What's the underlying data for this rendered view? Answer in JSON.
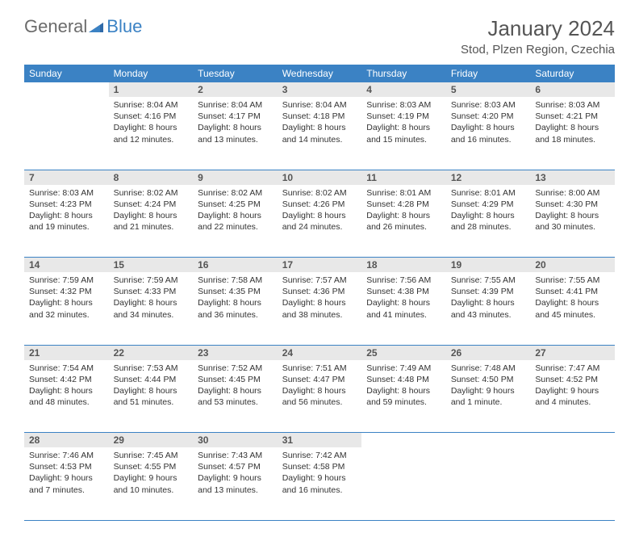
{
  "logo": {
    "text1": "General",
    "text2": "Blue"
  },
  "title": "January 2024",
  "location": "Stod, Plzen Region, Czechia",
  "colors": {
    "header_bg": "#3b82c4",
    "header_text": "#ffffff",
    "daynum_bg": "#e8e8e8",
    "daynum_text": "#555555",
    "body_text": "#333333",
    "rule": "#3b82c4",
    "logo_gray": "#6b6b6b",
    "logo_blue": "#3b82c4"
  },
  "weekdays": [
    "Sunday",
    "Monday",
    "Tuesday",
    "Wednesday",
    "Thursday",
    "Friday",
    "Saturday"
  ],
  "weeks": [
    [
      null,
      {
        "day": "1",
        "sunrise": "Sunrise: 8:04 AM",
        "sunset": "Sunset: 4:16 PM",
        "dl1": "Daylight: 8 hours",
        "dl2": "and 12 minutes."
      },
      {
        "day": "2",
        "sunrise": "Sunrise: 8:04 AM",
        "sunset": "Sunset: 4:17 PM",
        "dl1": "Daylight: 8 hours",
        "dl2": "and 13 minutes."
      },
      {
        "day": "3",
        "sunrise": "Sunrise: 8:04 AM",
        "sunset": "Sunset: 4:18 PM",
        "dl1": "Daylight: 8 hours",
        "dl2": "and 14 minutes."
      },
      {
        "day": "4",
        "sunrise": "Sunrise: 8:03 AM",
        "sunset": "Sunset: 4:19 PM",
        "dl1": "Daylight: 8 hours",
        "dl2": "and 15 minutes."
      },
      {
        "day": "5",
        "sunrise": "Sunrise: 8:03 AM",
        "sunset": "Sunset: 4:20 PM",
        "dl1": "Daylight: 8 hours",
        "dl2": "and 16 minutes."
      },
      {
        "day": "6",
        "sunrise": "Sunrise: 8:03 AM",
        "sunset": "Sunset: 4:21 PM",
        "dl1": "Daylight: 8 hours",
        "dl2": "and 18 minutes."
      }
    ],
    [
      {
        "day": "7",
        "sunrise": "Sunrise: 8:03 AM",
        "sunset": "Sunset: 4:23 PM",
        "dl1": "Daylight: 8 hours",
        "dl2": "and 19 minutes."
      },
      {
        "day": "8",
        "sunrise": "Sunrise: 8:02 AM",
        "sunset": "Sunset: 4:24 PM",
        "dl1": "Daylight: 8 hours",
        "dl2": "and 21 minutes."
      },
      {
        "day": "9",
        "sunrise": "Sunrise: 8:02 AM",
        "sunset": "Sunset: 4:25 PM",
        "dl1": "Daylight: 8 hours",
        "dl2": "and 22 minutes."
      },
      {
        "day": "10",
        "sunrise": "Sunrise: 8:02 AM",
        "sunset": "Sunset: 4:26 PM",
        "dl1": "Daylight: 8 hours",
        "dl2": "and 24 minutes."
      },
      {
        "day": "11",
        "sunrise": "Sunrise: 8:01 AM",
        "sunset": "Sunset: 4:28 PM",
        "dl1": "Daylight: 8 hours",
        "dl2": "and 26 minutes."
      },
      {
        "day": "12",
        "sunrise": "Sunrise: 8:01 AM",
        "sunset": "Sunset: 4:29 PM",
        "dl1": "Daylight: 8 hours",
        "dl2": "and 28 minutes."
      },
      {
        "day": "13",
        "sunrise": "Sunrise: 8:00 AM",
        "sunset": "Sunset: 4:30 PM",
        "dl1": "Daylight: 8 hours",
        "dl2": "and 30 minutes."
      }
    ],
    [
      {
        "day": "14",
        "sunrise": "Sunrise: 7:59 AM",
        "sunset": "Sunset: 4:32 PM",
        "dl1": "Daylight: 8 hours",
        "dl2": "and 32 minutes."
      },
      {
        "day": "15",
        "sunrise": "Sunrise: 7:59 AM",
        "sunset": "Sunset: 4:33 PM",
        "dl1": "Daylight: 8 hours",
        "dl2": "and 34 minutes."
      },
      {
        "day": "16",
        "sunrise": "Sunrise: 7:58 AM",
        "sunset": "Sunset: 4:35 PM",
        "dl1": "Daylight: 8 hours",
        "dl2": "and 36 minutes."
      },
      {
        "day": "17",
        "sunrise": "Sunrise: 7:57 AM",
        "sunset": "Sunset: 4:36 PM",
        "dl1": "Daylight: 8 hours",
        "dl2": "and 38 minutes."
      },
      {
        "day": "18",
        "sunrise": "Sunrise: 7:56 AM",
        "sunset": "Sunset: 4:38 PM",
        "dl1": "Daylight: 8 hours",
        "dl2": "and 41 minutes."
      },
      {
        "day": "19",
        "sunrise": "Sunrise: 7:55 AM",
        "sunset": "Sunset: 4:39 PM",
        "dl1": "Daylight: 8 hours",
        "dl2": "and 43 minutes."
      },
      {
        "day": "20",
        "sunrise": "Sunrise: 7:55 AM",
        "sunset": "Sunset: 4:41 PM",
        "dl1": "Daylight: 8 hours",
        "dl2": "and 45 minutes."
      }
    ],
    [
      {
        "day": "21",
        "sunrise": "Sunrise: 7:54 AM",
        "sunset": "Sunset: 4:42 PM",
        "dl1": "Daylight: 8 hours",
        "dl2": "and 48 minutes."
      },
      {
        "day": "22",
        "sunrise": "Sunrise: 7:53 AM",
        "sunset": "Sunset: 4:44 PM",
        "dl1": "Daylight: 8 hours",
        "dl2": "and 51 minutes."
      },
      {
        "day": "23",
        "sunrise": "Sunrise: 7:52 AM",
        "sunset": "Sunset: 4:45 PM",
        "dl1": "Daylight: 8 hours",
        "dl2": "and 53 minutes."
      },
      {
        "day": "24",
        "sunrise": "Sunrise: 7:51 AM",
        "sunset": "Sunset: 4:47 PM",
        "dl1": "Daylight: 8 hours",
        "dl2": "and 56 minutes."
      },
      {
        "day": "25",
        "sunrise": "Sunrise: 7:49 AM",
        "sunset": "Sunset: 4:48 PM",
        "dl1": "Daylight: 8 hours",
        "dl2": "and 59 minutes."
      },
      {
        "day": "26",
        "sunrise": "Sunrise: 7:48 AM",
        "sunset": "Sunset: 4:50 PM",
        "dl1": "Daylight: 9 hours",
        "dl2": "and 1 minute."
      },
      {
        "day": "27",
        "sunrise": "Sunrise: 7:47 AM",
        "sunset": "Sunset: 4:52 PM",
        "dl1": "Daylight: 9 hours",
        "dl2": "and 4 minutes."
      }
    ],
    [
      {
        "day": "28",
        "sunrise": "Sunrise: 7:46 AM",
        "sunset": "Sunset: 4:53 PM",
        "dl1": "Daylight: 9 hours",
        "dl2": "and 7 minutes."
      },
      {
        "day": "29",
        "sunrise": "Sunrise: 7:45 AM",
        "sunset": "Sunset: 4:55 PM",
        "dl1": "Daylight: 9 hours",
        "dl2": "and 10 minutes."
      },
      {
        "day": "30",
        "sunrise": "Sunrise: 7:43 AM",
        "sunset": "Sunset: 4:57 PM",
        "dl1": "Daylight: 9 hours",
        "dl2": "and 13 minutes."
      },
      {
        "day": "31",
        "sunrise": "Sunrise: 7:42 AM",
        "sunset": "Sunset: 4:58 PM",
        "dl1": "Daylight: 9 hours",
        "dl2": "and 16 minutes."
      },
      null,
      null,
      null
    ]
  ]
}
